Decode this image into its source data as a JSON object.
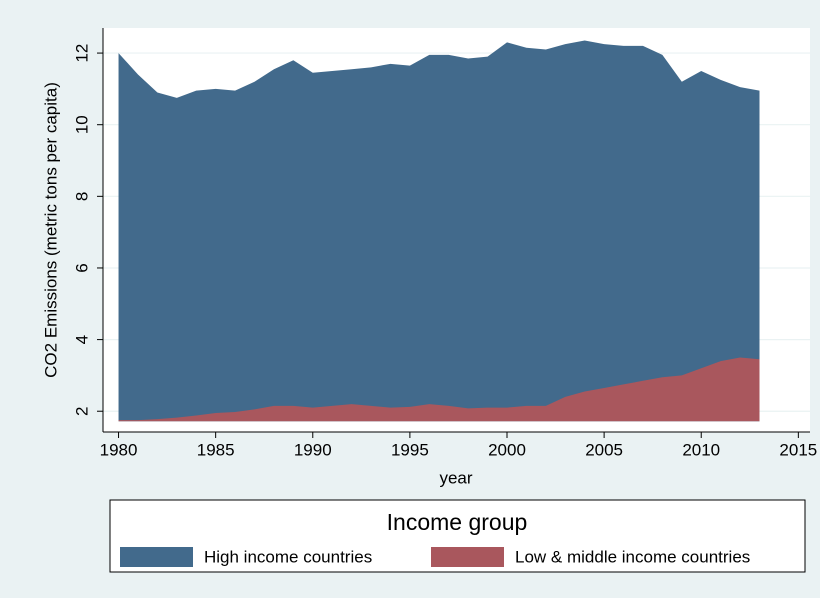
{
  "chart_data": {
    "type": "area",
    "x_label": "year",
    "y_label": "CO2 Emissions (metric tons per capita)",
    "legend_title": "Income group",
    "x": [
      1980,
      1981,
      1982,
      1983,
      1984,
      1985,
      1986,
      1987,
      1988,
      1989,
      1990,
      1991,
      1992,
      1993,
      1994,
      1995,
      1996,
      1997,
      1998,
      1999,
      2000,
      2001,
      2002,
      2003,
      2004,
      2005,
      2006,
      2007,
      2008,
      2009,
      2010,
      2011,
      2012,
      2013
    ],
    "series": [
      {
        "name": "High income countries",
        "color": "#426a8c",
        "values": [
          12.0,
          11.4,
          10.9,
          10.75,
          10.95,
          11.0,
          10.95,
          11.2,
          11.55,
          11.8,
          11.45,
          11.5,
          11.55,
          11.6,
          11.7,
          11.65,
          11.95,
          11.95,
          11.85,
          11.9,
          12.3,
          12.15,
          12.1,
          12.25,
          12.35,
          12.25,
          12.2,
          12.2,
          11.95,
          11.2,
          11.5,
          11.25,
          11.05,
          10.95
        ]
      },
      {
        "name": "Low & middle income countries",
        "color": "#a9575d",
        "values": [
          1.75,
          1.75,
          1.78,
          1.82,
          1.88,
          1.95,
          1.98,
          2.05,
          2.15,
          2.15,
          2.1,
          2.15,
          2.2,
          2.15,
          2.1,
          2.12,
          2.2,
          2.15,
          2.08,
          2.1,
          2.1,
          2.15,
          2.15,
          2.4,
          2.55,
          2.65,
          2.75,
          2.85,
          2.95,
          3.0,
          3.2,
          3.4,
          3.5,
          3.45
        ]
      }
    ],
    "xlim": [
      1979.2,
      2015.6
    ],
    "xticks": [
      1980,
      1985,
      1990,
      1995,
      2000,
      2005,
      2010,
      2015
    ],
    "ylim": [
      1.42,
      12.7
    ],
    "area_base": 1.72,
    "yticks": [
      2,
      4,
      6,
      8,
      10,
      12
    ],
    "grid": true
  }
}
